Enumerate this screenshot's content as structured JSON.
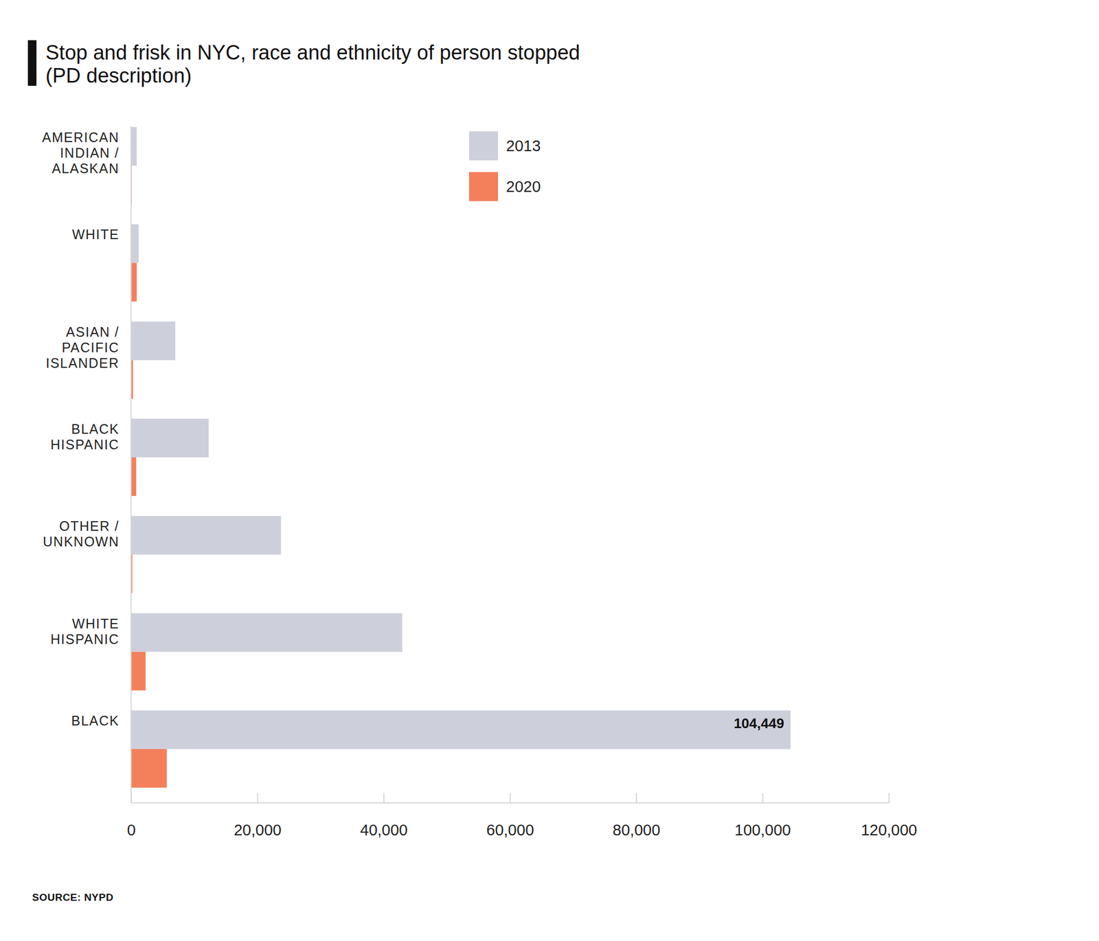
{
  "chart_data": {
    "type": "bar",
    "title": "Stop and frisk in NYC, race and ethnicity of person stopped (PD description)",
    "source": "SOURCE: NYPD",
    "orientation": "horizontal",
    "legend": "top",
    "categories": [
      "AMERICAN INDIAN / ALASKAN",
      "WHITE",
      "ASIAN / PACIFIC ISLANDER",
      "BLACK HISPANIC",
      "OTHER / UNKNOWN",
      "WHITE HISPANIC",
      "BLACK"
    ],
    "series": [
      {
        "name": "2013",
        "color": "#cdd0db",
        "values": [
          900,
          1200,
          7000,
          12300,
          23750,
          42950,
          104449
        ],
        "value_labels": [
          null,
          null,
          null,
          null,
          null,
          null,
          "104,449"
        ]
      },
      {
        "name": "2020",
        "color": "#f47f5b",
        "values": [
          100,
          900,
          300,
          800,
          200,
          2300,
          5650
        ]
      }
    ],
    "xlim": [
      0,
      120000
    ],
    "xticks": [
      0,
      {
        "value": 20000,
        "label": "20,000"
      },
      {
        "value": 40000,
        "label": "40,000"
      },
      {
        "value": 60000,
        "label": "60,000"
      },
      {
        "value": 80000,
        "label": "80,000"
      },
      {
        "value": 100000,
        "label": "100,000"
      },
      {
        "value": 120000,
        "label": "120,000"
      }
    ]
  }
}
